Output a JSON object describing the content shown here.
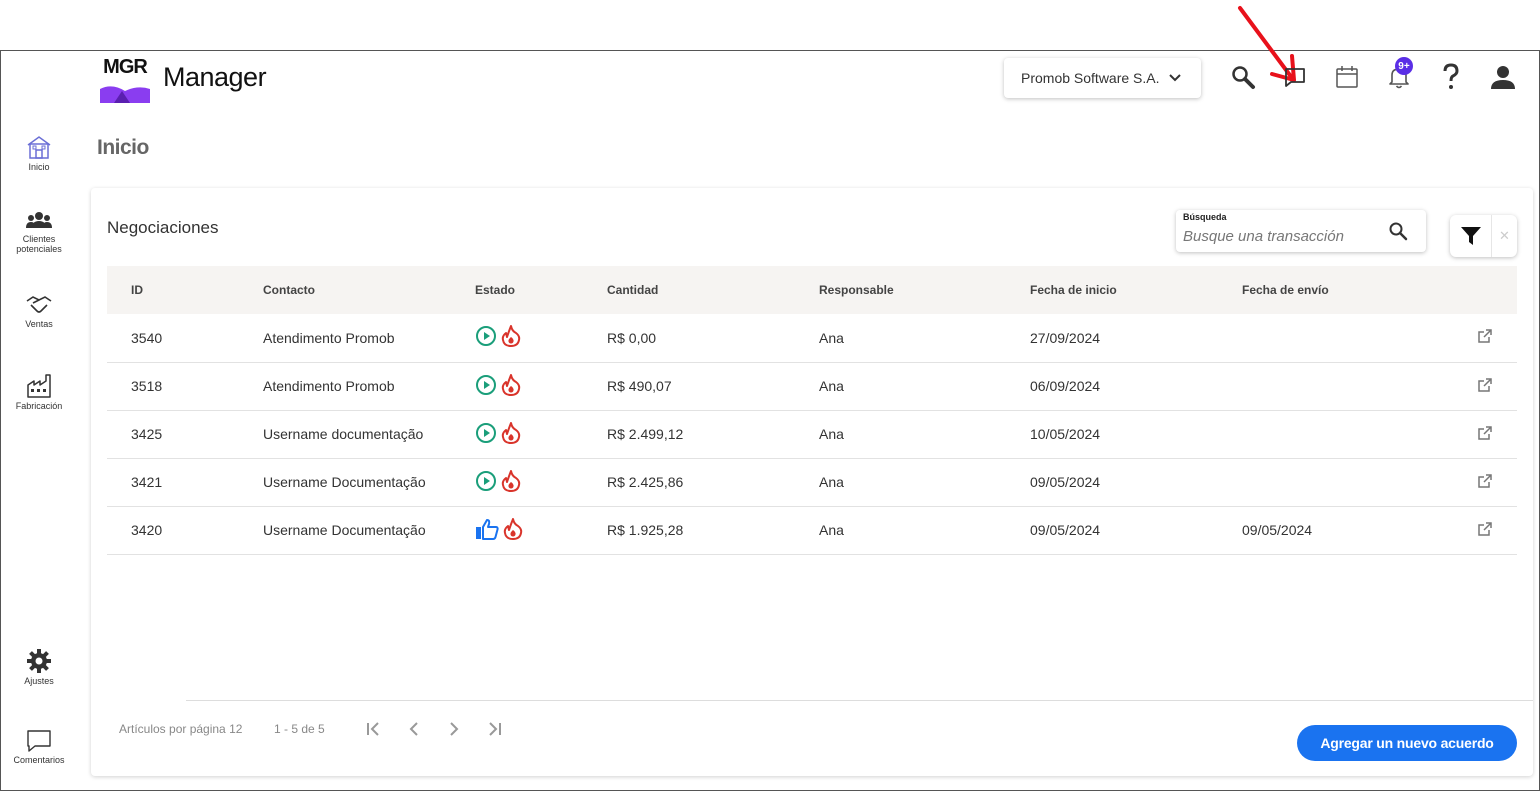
{
  "app": {
    "logo_text": "MGR",
    "name": "Manager"
  },
  "header": {
    "company": "Promob Software S.A.",
    "notifications_badge": "9+",
    "icons": [
      "search-icon",
      "chat-icon",
      "calendar-icon",
      "bell-icon",
      "help-icon",
      "user-icon"
    ]
  },
  "sidebar": {
    "items": [
      {
        "label": "Inicio",
        "icon": "home-icon"
      },
      {
        "label": "Clientes potenciales",
        "icon": "people-icon"
      },
      {
        "label": "Ventas",
        "icon": "handshake-icon"
      },
      {
        "label": "Fabricación",
        "icon": "factory-icon"
      },
      {
        "label": "Ajustes",
        "icon": "gear-icon"
      },
      {
        "label": "Comentarios",
        "icon": "comment-icon"
      }
    ]
  },
  "page": {
    "title": "Inicio"
  },
  "card": {
    "title": "Negociaciones",
    "search": {
      "label": "Búsqueda",
      "placeholder": "Busque una transacción"
    },
    "table": {
      "headers": [
        "ID",
        "Contacto",
        "Estado",
        "Cantidad",
        "Responsable",
        "Fecha de inicio",
        "Fecha de envío"
      ],
      "rows": [
        {
          "id": "3540",
          "contact": "Atendimento Promob",
          "status": "play",
          "amount": "R$ 0,00",
          "owner": "Ana",
          "start": "27/09/2024",
          "sent": ""
        },
        {
          "id": "3518",
          "contact": "Atendimento Promob",
          "status": "play",
          "amount": "R$ 490,07",
          "owner": "Ana",
          "start": "06/09/2024",
          "sent": ""
        },
        {
          "id": "3425",
          "contact": "Username documentação",
          "status": "play",
          "amount": "R$ 2.499,12",
          "owner": "Ana",
          "start": "10/05/2024",
          "sent": ""
        },
        {
          "id": "3421",
          "contact": "Username Documentação",
          "status": "play",
          "amount": "R$ 2.425,86",
          "owner": "Ana",
          "start": "09/05/2024",
          "sent": ""
        },
        {
          "id": "3420",
          "contact": "Username Documentação",
          "status": "thumbs-up",
          "amount": "R$ 1.925,28",
          "owner": "Ana",
          "start": "09/05/2024",
          "sent": "09/05/2024"
        }
      ]
    },
    "pagination": {
      "per_page_label": "Artículos por página 12",
      "range": "1 - 5 de 5"
    },
    "add_button": "Agregar un nuevo acuerdo"
  },
  "colors": {
    "accent": "#1a73f0",
    "play": "#1a9e7a",
    "hot": "#d9342b",
    "thumbs": "#1a73f0",
    "badge": "#5a2ee6",
    "annotation": "#e8111b"
  }
}
